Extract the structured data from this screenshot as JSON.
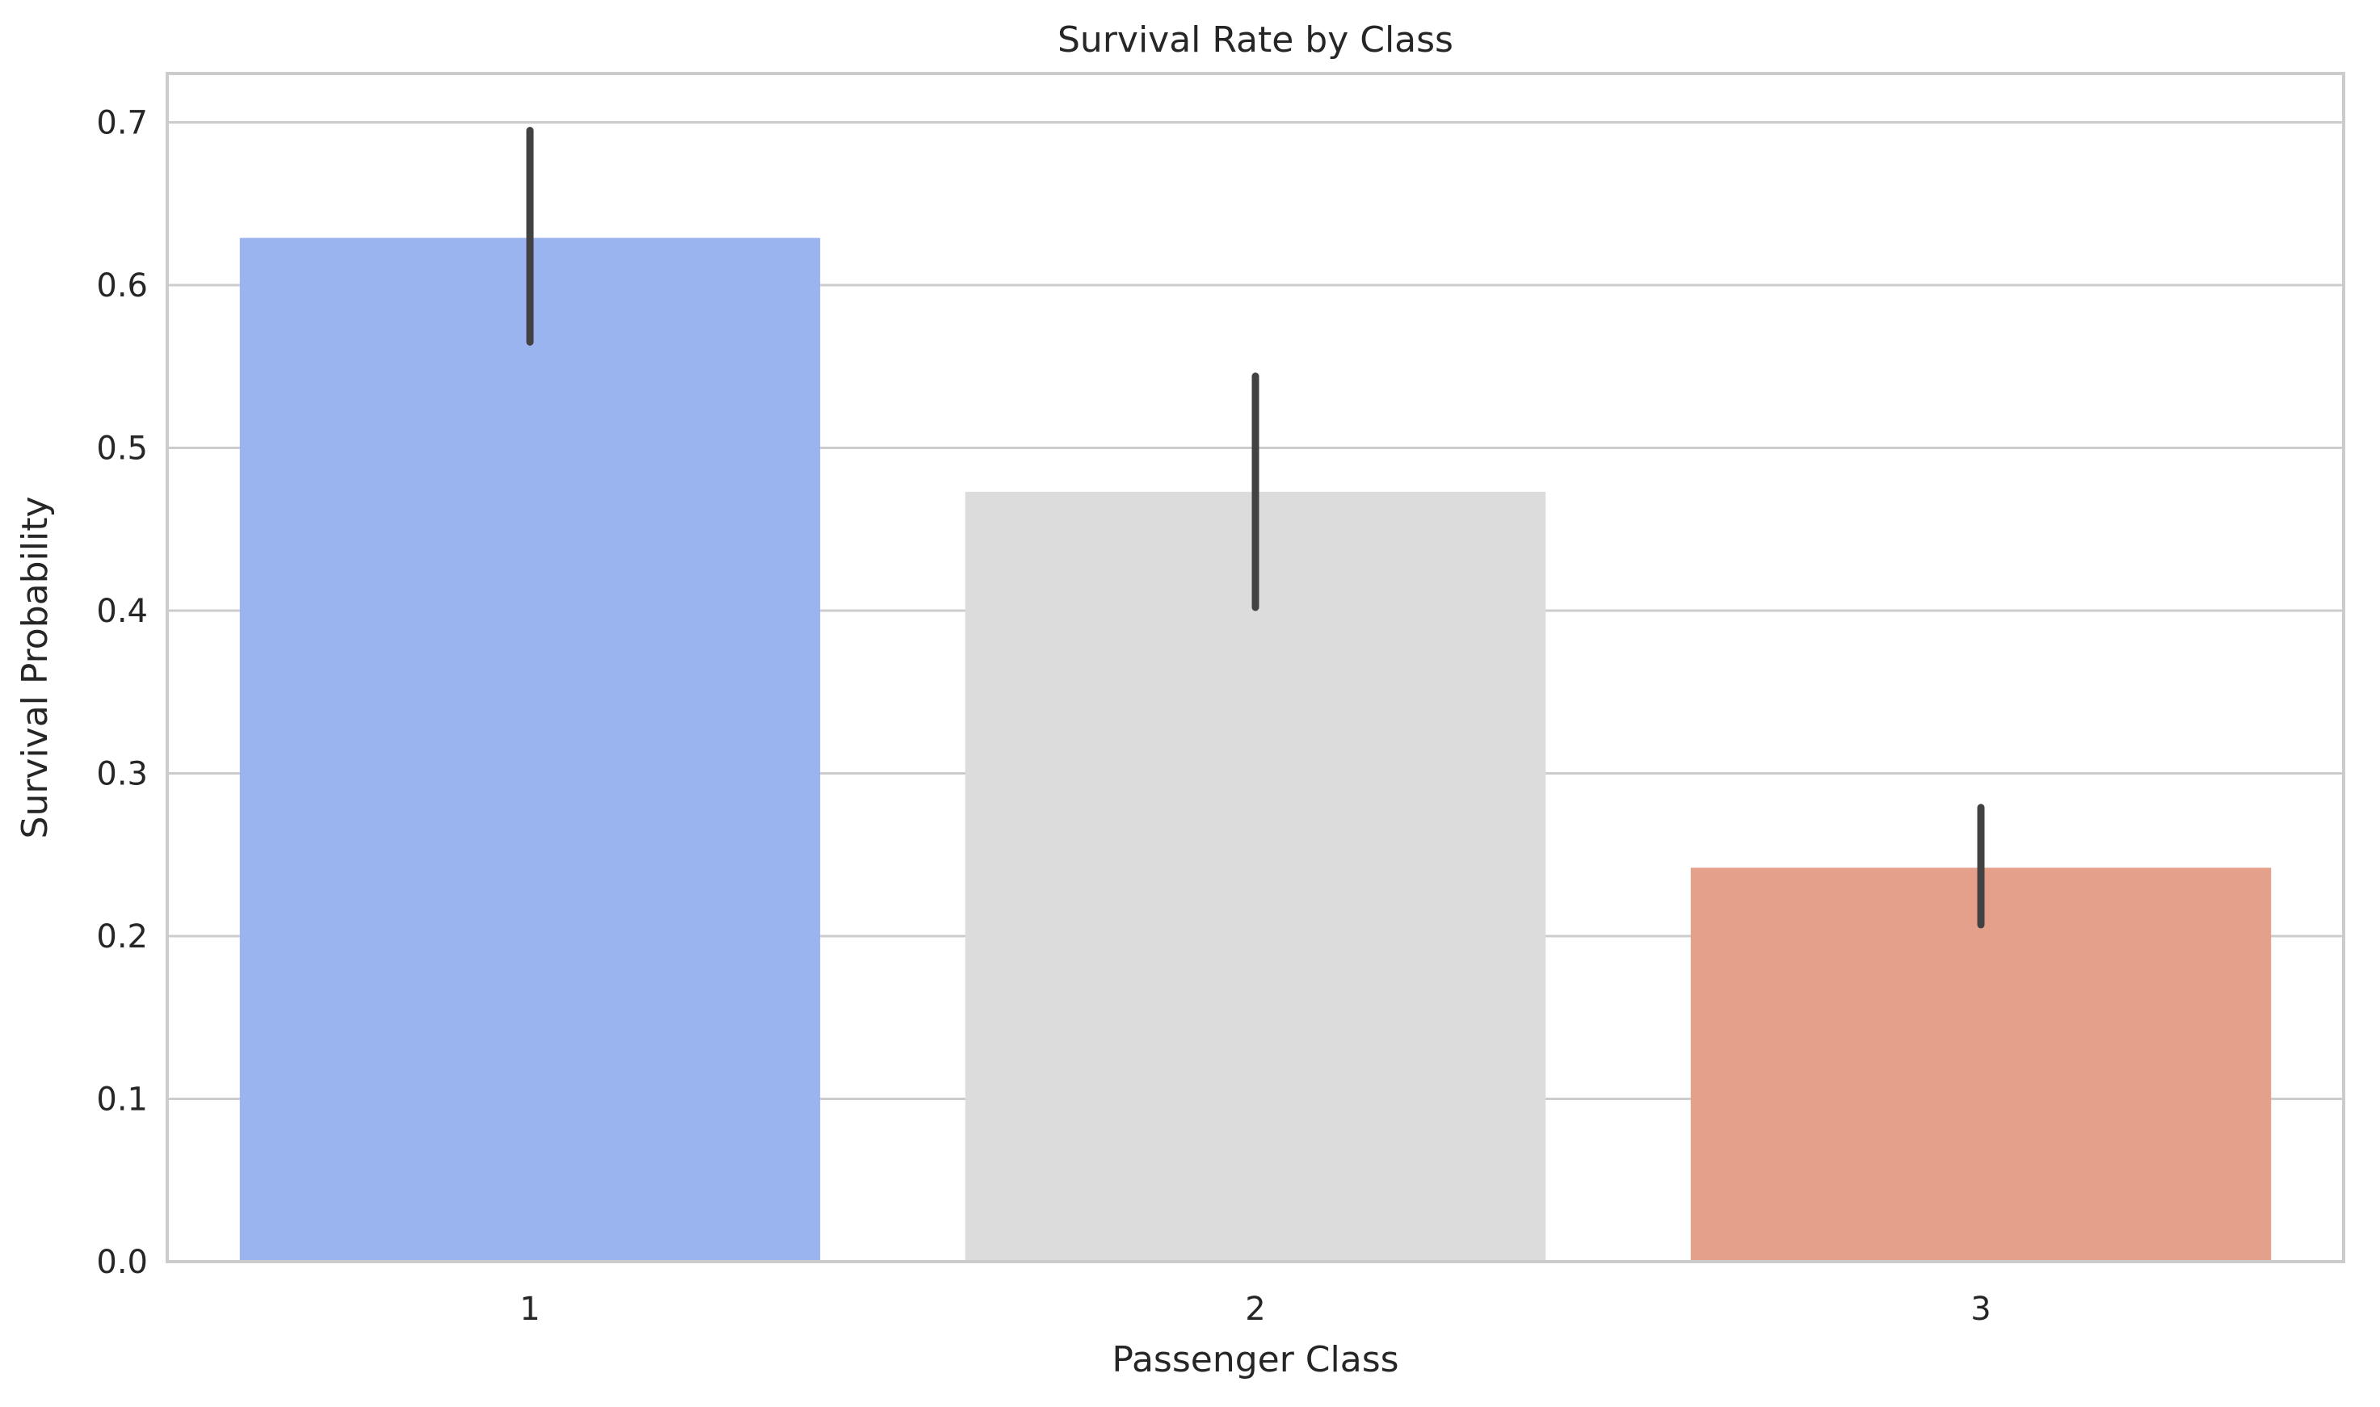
{
  "chart_data": {
    "type": "bar",
    "title": "Survival Rate by Class",
    "xlabel": "Passenger Class",
    "ylabel": "Survival Probability",
    "categories": [
      "1",
      "2",
      "3"
    ],
    "values": [
      0.629,
      0.473,
      0.242
    ],
    "error_bars": [
      {
        "low": 0.565,
        "high": 0.695
      },
      {
        "low": 0.402,
        "high": 0.544
      },
      {
        "low": 0.207,
        "high": 0.279
      }
    ],
    "colors": [
      "#9ab4ef",
      "#dcdcdc",
      "#e4a08a"
    ],
    "ylim": [
      0,
      0.73
    ],
    "yticks": [
      "0.0",
      "0.1",
      "0.2",
      "0.3",
      "0.4",
      "0.5",
      "0.6",
      "0.7"
    ],
    "grid": true,
    "legend": false
  }
}
